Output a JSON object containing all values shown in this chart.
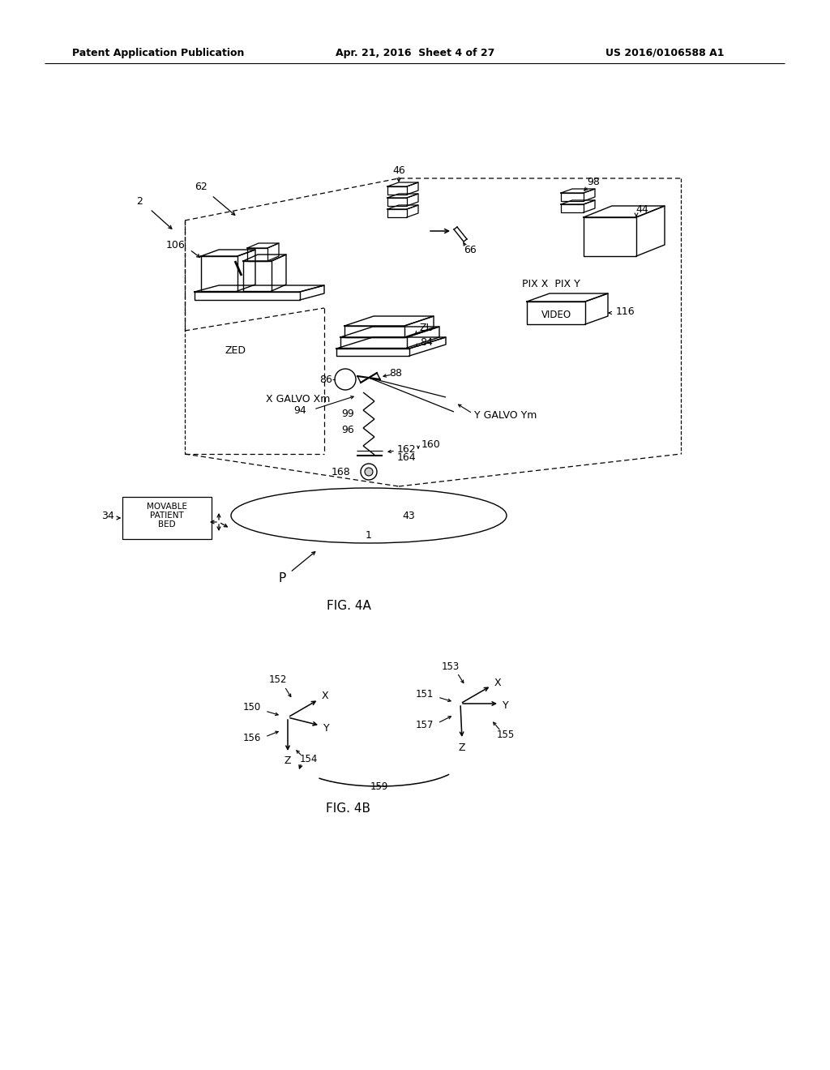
{
  "bg_color": "#ffffff",
  "header_left": "Patent Application Publication",
  "header_center": "Apr. 21, 2016  Sheet 4 of 27",
  "header_right": "US 2016/0106588 A1",
  "fig4a_label": "FIG. 4A",
  "fig4b_label": "FIG. 4B"
}
